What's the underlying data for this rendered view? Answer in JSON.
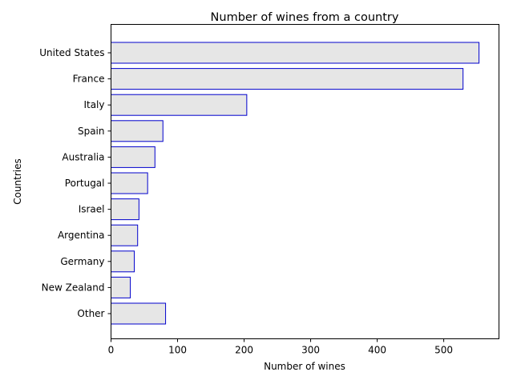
{
  "chart_data": {
    "type": "bar",
    "orientation": "horizontal",
    "title": "Number of wines from a country",
    "xlabel": "Number of wines",
    "ylabel": "Countries",
    "categories": [
      "United States",
      "France",
      "Italy",
      "Spain",
      "Australia",
      "Portugal",
      "Israel",
      "Argentina",
      "Germany",
      "New Zealand",
      "Other"
    ],
    "values": [
      553,
      529,
      204,
      78,
      66,
      55,
      42,
      40,
      35,
      29,
      82
    ],
    "xlim": [
      0,
      583
    ],
    "xticks": [
      0,
      100,
      200,
      300,
      400,
      500
    ],
    "grid": false,
    "legend": "none",
    "colors": {
      "bar_fill": "#e6e6e6",
      "bar_edge": "#0000cc",
      "axis": "#000000"
    }
  }
}
